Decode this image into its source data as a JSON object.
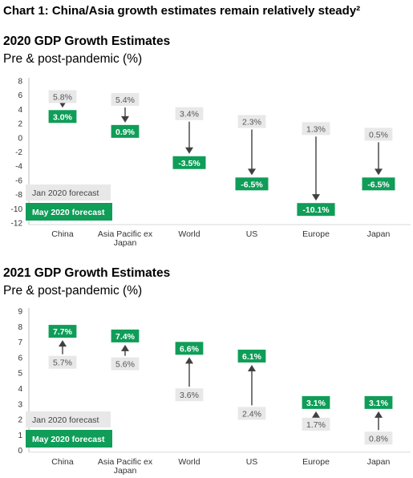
{
  "title": "Chart 1: China/Asia growth estimates remain relatively steady²",
  "colors": {
    "green": "#0f9d58",
    "grey_box": "#e8e8e8",
    "arrow": "#404040",
    "grid": "#d9d9d9"
  },
  "chart_data": [
    {
      "type": "bar",
      "title": "2020 GDP Growth Estimates",
      "subtitle": "Pre & post-pandemic (%)",
      "categories": [
        "China",
        "Asia Pacific ex Japan",
        "World",
        "US",
        "Europe",
        "Japan"
      ],
      "series": [
        {
          "name": "Jan 2020 forecast",
          "values": [
            5.8,
            5.4,
            3.4,
            2.3,
            1.3,
            0.5
          ]
        },
        {
          "name": "May 2020 forecast",
          "values": [
            3.0,
            0.9,
            -3.5,
            -6.5,
            -10.1,
            -6.5
          ]
        }
      ],
      "labels": {
        "jan": [
          "5.8%",
          "5.4%",
          "3.4%",
          "2.3%",
          "1.3%",
          "0.5%"
        ],
        "may": [
          "3.0%",
          "0.9%",
          "-3.5%",
          "-6.5%",
          "-10.1%",
          "-6.5%"
        ]
      },
      "yticks": [
        "8",
        "6",
        "4",
        "2",
        "0",
        "-2",
        "-4",
        "-6",
        "-8",
        "-10",
        "-12"
      ],
      "ylim": [
        -12,
        8
      ],
      "legend": [
        "Jan 2020 forecast",
        "May 2020 forecast"
      ],
      "legend_position": "bottom-left",
      "grid": false
    },
    {
      "type": "bar",
      "title": "2021 GDP Growth Estimates",
      "subtitle": "Pre & post-pandemic (%)",
      "categories": [
        "China",
        "Asia Pacific ex Japan",
        "World",
        "US",
        "Europe",
        "Japan"
      ],
      "series": [
        {
          "name": "Jan 2020 forecast",
          "values": [
            5.7,
            5.6,
            3.6,
            2.4,
            1.7,
            0.8
          ]
        },
        {
          "name": "May 2020 forecast",
          "values": [
            7.7,
            7.4,
            6.6,
            6.1,
            3.1,
            3.1
          ]
        }
      ],
      "labels": {
        "jan": [
          "5.7%",
          "5.6%",
          "3.6%",
          "2.4%",
          "1.7%",
          "0.8%"
        ],
        "may": [
          "7.7%",
          "7.4%",
          "6.6%",
          "6.1%",
          "3.1%",
          "3.1%"
        ]
      },
      "yticks": [
        "9",
        "8",
        "7",
        "6",
        "5",
        "4",
        "3",
        "2",
        "1",
        "0"
      ],
      "ylim": [
        0,
        9
      ],
      "legend": [
        "Jan 2020 forecast",
        "May 2020 forecast"
      ],
      "legend_position": "bottom-left",
      "grid": false
    }
  ]
}
